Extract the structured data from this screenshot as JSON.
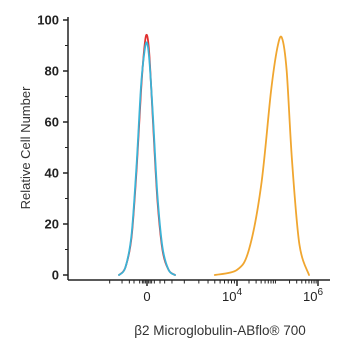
{
  "chart_data": {
    "type": "line",
    "title": "",
    "xlabel": "β2 Microglobulin-ABflo® 700",
    "ylabel": "Relative Cell Number",
    "x_scale": "biexponential",
    "ylim": [
      0,
      100
    ],
    "y_ticks": [
      "0",
      "20",
      "40",
      "60",
      "80",
      "100"
    ],
    "x_ticks": [
      {
        "value": 0,
        "base": "0",
        "exp": ""
      },
      {
        "value": 10000,
        "base": "10",
        "exp": "4"
      },
      {
        "value": 1000000,
        "base": "10",
        "exp": "6"
      }
    ],
    "grid": false,
    "legend": "none",
    "series": [
      {
        "color": "#e03030",
        "x": [
          -600,
          -400,
          -250,
          -150,
          -80,
          -30,
          0,
          30,
          80,
          150,
          250,
          400,
          600
        ],
        "y": [
          0,
          3,
          15,
          42,
          72,
          90,
          94,
          86,
          60,
          30,
          10,
          2,
          0
        ]
      },
      {
        "color": "#3bb3d6",
        "x": [
          -600,
          -400,
          -250,
          -150,
          -80,
          -30,
          0,
          30,
          80,
          150,
          250,
          400,
          600
        ],
        "y": [
          0,
          3,
          16,
          44,
          74,
          88,
          91,
          84,
          62,
          32,
          11,
          2,
          0
        ]
      },
      {
        "color": "#f0a630",
        "x": [
          4000,
          10000,
          20000,
          40000,
          70000,
          100000,
          130000,
          170000,
          230000,
          350000,
          600000
        ],
        "y": [
          0,
          2,
          10,
          35,
          72,
          89,
          93,
          80,
          45,
          12,
          0
        ]
      }
    ]
  }
}
